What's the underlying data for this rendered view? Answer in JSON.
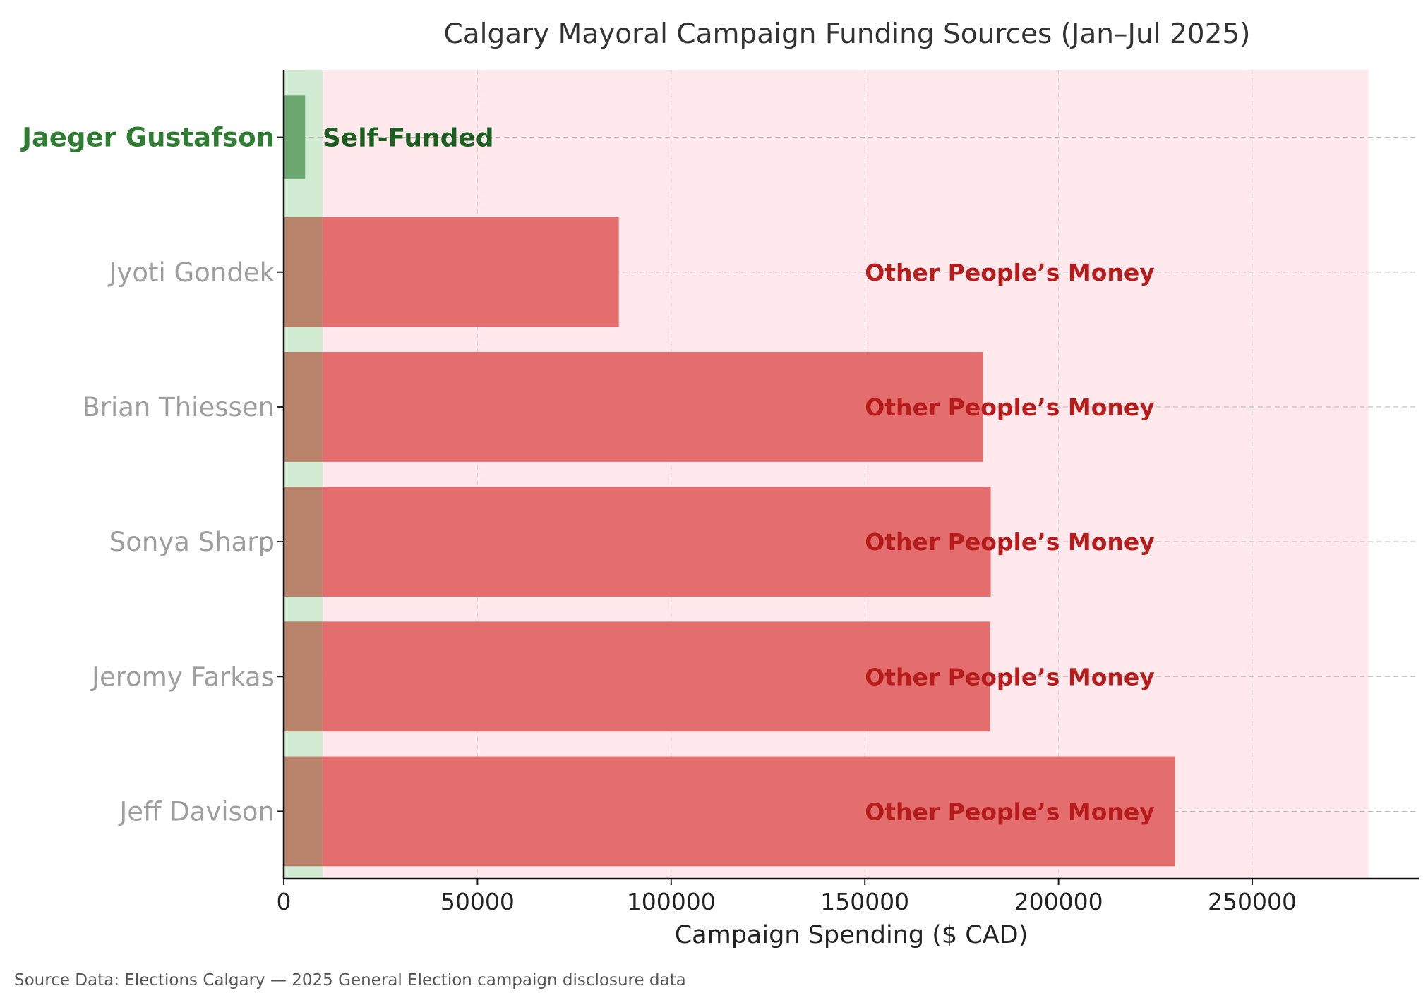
{
  "chart_data": {
    "type": "bar",
    "orientation": "horizontal",
    "title": "Calgary Mayoral Campaign Funding Sources (Jan–Jul 2025)",
    "xlabel": "Campaign Spending ($ CAD)",
    "ylabel": "",
    "xlim": [
      0,
      293000
    ],
    "xticks": [
      "0",
      "50000",
      "100000",
      "150000",
      "200000",
      "250000"
    ],
    "xtick_values": [
      0,
      50000,
      100000,
      150000,
      200000,
      250000
    ],
    "grid": true,
    "categories": [
      "Jaeger Gustafson",
      "Jyoti Gondek",
      "Brian Thiessen",
      "Sonya Sharp",
      "Jeromy Farkas",
      "Jeff Davison"
    ],
    "values": [
      5500,
      86500,
      180500,
      182500,
      182300,
      230000
    ],
    "highlighted_category": "Jaeger Gustafson",
    "bar_annotations": [
      "Self-Funded",
      "Other People’s Money",
      "Other People’s Money",
      "Other People’s Money",
      "Other People’s Money",
      "Other People’s Money"
    ],
    "shaded_regions": [
      {
        "from": 0,
        "to": 10000,
        "color": "#d2ebd3"
      },
      {
        "from": 10000,
        "to": 280000,
        "color": "#ffe9ec"
      }
    ],
    "colors": {
      "highlight_bar": "#6aa86f",
      "bar": "#e46e6e",
      "bar_in_green_zone": "#b8826b",
      "highlight_label": "#2e7d32",
      "label": "#9e9e9e",
      "annotation_red": "#b71c1c",
      "annotation_green": "#1b5e20"
    },
    "source": "Source Data: Elections Calgary — 2025 General Election campaign disclosure data"
  }
}
